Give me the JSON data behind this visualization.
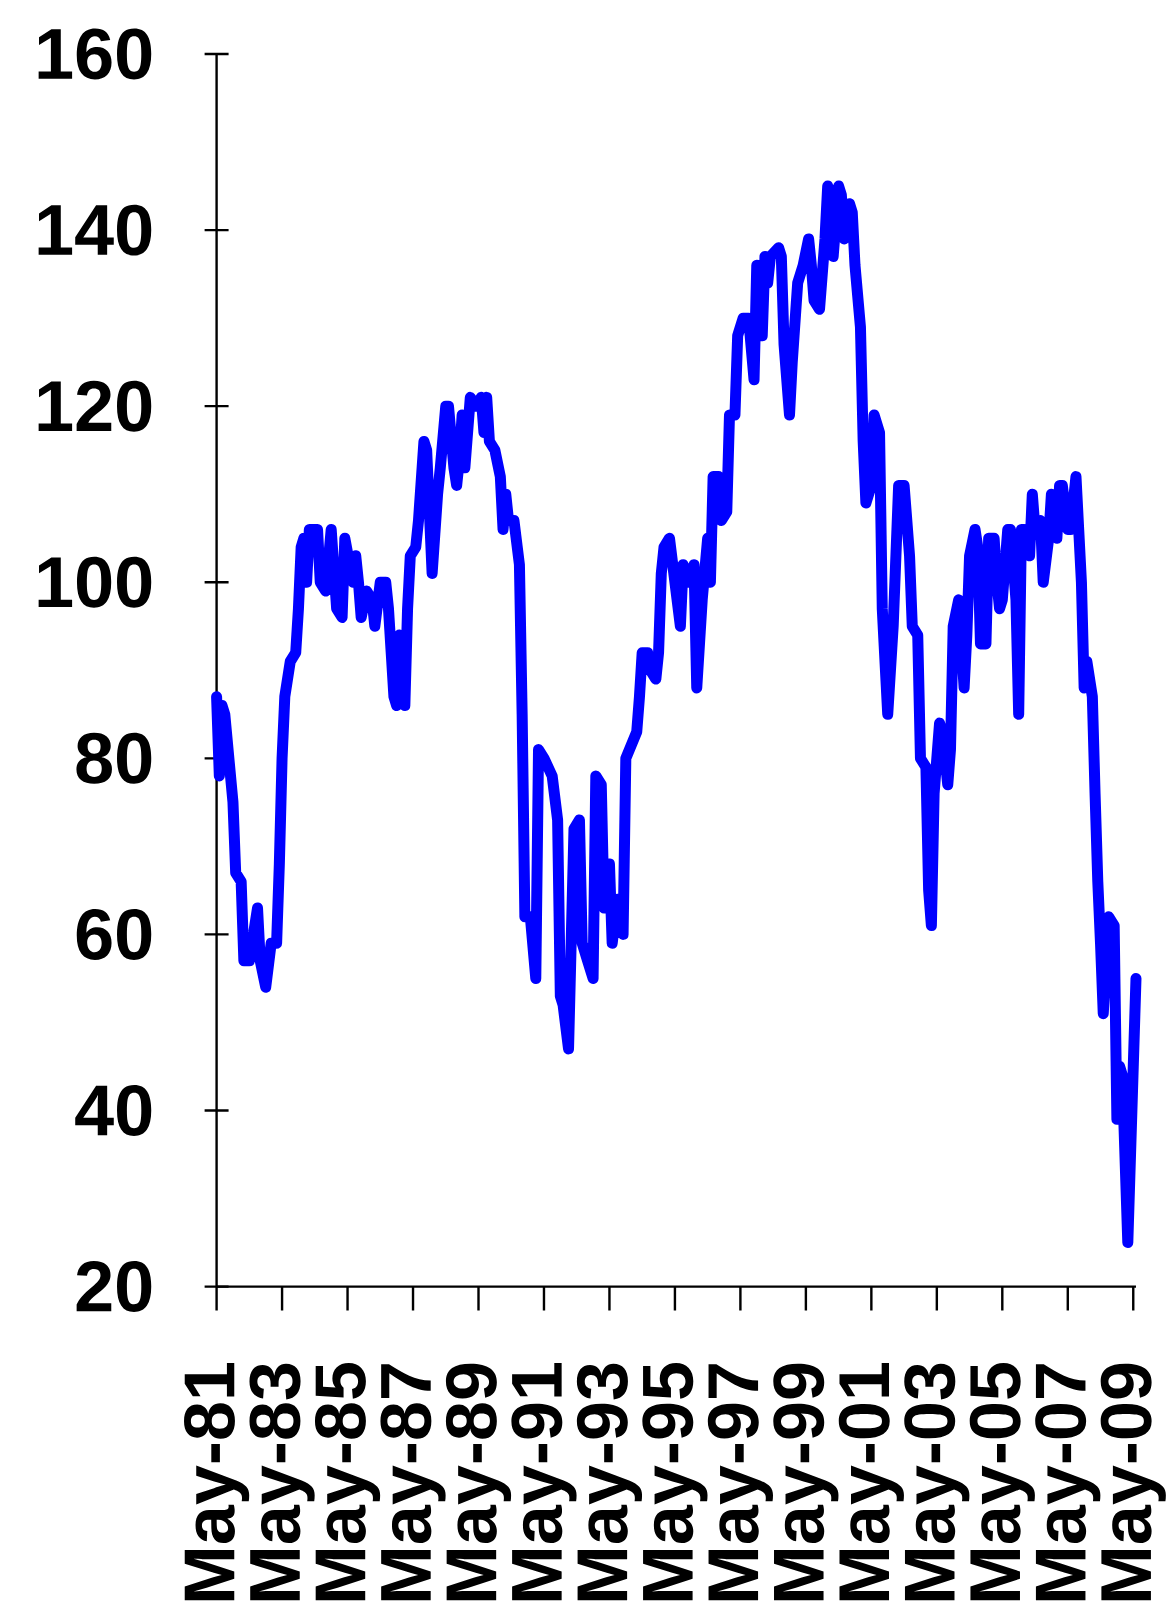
{
  "chart_data": {
    "type": "line",
    "x": [
      "1981-05",
      "1981-06",
      "1981-07",
      "1981-08",
      "1981-11",
      "1981-12",
      "1982-02",
      "1982-03",
      "1982-05",
      "1982-08",
      "1982-09",
      "1982-11",
      "1983-01",
      "1983-03",
      "1983-04",
      "1983-05",
      "1983-06",
      "1983-08",
      "1983-10",
      "1983-11",
      "1983-12",
      "1984-01",
      "1984-02",
      "1984-03",
      "1984-06",
      "1984-07",
      "1984-09",
      "1984-11",
      "1985-01",
      "1985-03",
      "1985-04",
      "1985-07",
      "1985-08",
      "1985-09",
      "1985-10",
      "1985-12",
      "1986-02",
      "1986-03",
      "1986-05",
      "1986-07",
      "1986-08",
      "1986-09",
      "1986-10",
      "1986-11",
      "1986-12",
      "1987-02",
      "1987-03",
      "1987-04",
      "1987-06",
      "1987-07",
      "1987-09",
      "1987-10",
      "1987-12",
      "1988-02",
      "1988-03",
      "1988-05",
      "1988-06",
      "1988-08",
      "1988-09",
      "1988-10",
      "1988-11",
      "1988-12",
      "1989-02",
      "1989-04",
      "1989-06",
      "1989-07",
      "1989-08",
      "1989-09",
      "1989-11",
      "1990-01",
      "1990-02",
      "1990-03",
      "1990-04",
      "1990-06",
      "1990-08",
      "1990-09",
      "1990-10",
      "1990-12",
      "1991-02",
      "1991-03",
      "1991-05",
      "1991-08",
      "1991-10",
      "1991-11",
      "1991-12",
      "1992-02",
      "1992-04",
      "1992-06",
      "1992-07",
      "1992-09",
      "1992-11",
      "1992-12",
      "1993-02",
      "1993-03",
      "1993-05",
      "1993-06",
      "1993-08",
      "1993-10",
      "1993-11",
      "1994-03",
      "1994-04",
      "1994-05",
      "1994-07",
      "1994-08",
      "1994-10",
      "1994-11",
      "1994-12",
      "1995-01",
      "1995-03",
      "1995-05",
      "1995-07",
      "1995-08",
      "1995-10",
      "1995-12",
      "1996-01",
      "1996-03",
      "1996-05",
      "1996-06",
      "1996-07",
      "1996-09",
      "1996-10",
      "1996-12",
      "1997-01",
      "1997-03",
      "1997-04",
      "1997-06",
      "1997-08",
      "1997-10",
      "1997-11",
      "1998-01",
      "1998-02",
      "1998-03",
      "1998-04",
      "1998-07",
      "1998-08",
      "1998-09",
      "1998-11",
      "1998-12",
      "1999-02",
      "1999-04",
      "1999-06",
      "1999-07",
      "1999-08",
      "1999-10",
      "1999-12",
      "2000-01",
      "2000-02",
      "2000-03",
      "2000-05",
      "2000-06",
      "2000-07",
      "2000-09",
      "2000-10",
      "2000-11",
      "2001-01",
      "2001-02",
      "2001-03",
      "2001-05",
      "2001-06",
      "2001-08",
      "2001-09",
      "2001-11",
      "2002-01",
      "2002-03",
      "2002-05",
      "2002-07",
      "2002-08",
      "2002-10",
      "2002-11",
      "2003-01",
      "2003-02",
      "2003-03",
      "2003-04",
      "2003-06",
      "2003-07",
      "2003-09",
      "2003-10",
      "2003-11",
      "2004-01",
      "2004-03",
      "2004-04",
      "2004-05",
      "2004-07",
      "2004-08",
      "2004-09",
      "2004-11",
      "2004-12",
      "2005-02",
      "2005-03",
      "2005-04",
      "2005-05",
      "2005-07",
      "2005-08",
      "2005-10",
      "2005-11",
      "2005-12",
      "2006-01",
      "2006-03",
      "2006-04",
      "2006-05",
      "2006-07",
      "2006-08",
      "2006-10",
      "2006-11",
      "2007-01",
      "2007-02",
      "2007-03",
      "2007-05",
      "2007-06",
      "2007-08",
      "2007-09",
      "2007-10",
      "2007-11",
      "2007-12",
      "2008-02",
      "2008-03",
      "2008-04",
      "2008-05",
      "2008-06",
      "2008-08",
      "2008-10",
      "2008-11",
      "2008-12",
      "2009-01",
      "2009-03",
      "2009-06"
    ],
    "values": [
      87,
      78,
      86,
      85,
      75,
      67,
      66,
      57,
      57,
      63,
      57,
      54,
      59,
      59,
      68,
      80,
      87,
      91,
      92,
      97,
      104,
      105,
      100,
      106,
      106,
      100,
      99,
      106,
      97,
      96,
      105,
      100,
      103,
      100,
      96,
      99,
      98,
      95,
      100,
      100,
      97,
      92,
      87,
      86,
      94,
      86,
      97,
      103,
      104,
      107,
      116,
      115,
      101,
      110,
      113,
      120,
      120,
      113,
      111,
      114,
      119,
      113,
      121,
      120,
      121,
      117,
      121,
      116,
      115,
      112,
      106,
      110,
      107,
      107,
      102,
      85,
      62,
      62,
      55,
      81,
      80,
      78,
      73,
      53,
      52,
      47,
      72,
      73,
      59,
      57,
      55,
      78,
      77,
      63,
      68,
      59,
      64,
      60,
      80,
      83,
      87,
      92,
      92,
      90,
      89,
      92,
      101,
      104,
      105,
      100,
      95,
      102,
      100,
      102,
      88,
      98,
      105,
      100,
      112,
      112,
      107,
      108,
      119,
      119,
      128,
      130,
      130,
      123,
      136,
      128,
      137,
      134,
      137,
      138,
      137,
      127,
      119,
      125,
      134,
      136,
      139,
      136,
      132,
      131,
      139,
      145,
      144,
      137,
      145,
      144,
      139,
      143,
      142,
      136,
      129,
      116,
      109,
      111,
      119,
      117,
      97,
      85,
      95,
      111,
      111,
      103,
      95,
      94,
      80,
      79,
      65,
      61,
      76,
      84,
      83,
      77,
      81,
      95,
      98,
      88,
      94,
      103,
      106,
      104,
      93,
      93,
      105,
      105,
      100,
      97,
      98,
      106,
      106,
      98,
      85,
      106,
      106,
      103,
      110,
      106,
      107,
      100,
      105,
      110,
      105,
      111,
      111,
      106,
      106,
      112,
      106,
      100,
      88,
      91,
      87,
      76,
      66,
      59,
      51,
      62,
      61,
      39,
      45,
      44,
      25,
      55
    ],
    "color": "#0000ff",
    "xlim": [
      "1981-05",
      "2009-06"
    ],
    "xticks": [
      {
        "value": "1981-05",
        "label": "May-81"
      },
      {
        "value": "1983-05",
        "label": "May-83"
      },
      {
        "value": "1985-05",
        "label": "May-85"
      },
      {
        "value": "1987-05",
        "label": "May-87"
      },
      {
        "value": "1989-05",
        "label": "May-89"
      },
      {
        "value": "1991-05",
        "label": "May-91"
      },
      {
        "value": "1993-05",
        "label": "May-93"
      },
      {
        "value": "1995-05",
        "label": "May-95"
      },
      {
        "value": "1997-05",
        "label": "May-97"
      },
      {
        "value": "1999-05",
        "label": "May-99"
      },
      {
        "value": "2001-05",
        "label": "May-01"
      },
      {
        "value": "2003-05",
        "label": "May-03"
      },
      {
        "value": "2005-05",
        "label": "May-05"
      },
      {
        "value": "2007-05",
        "label": "May-07"
      },
      {
        "value": "2009-05",
        "label": "May-09"
      }
    ],
    "ylim": [
      20,
      160
    ],
    "yticks": [
      20,
      40,
      60,
      80,
      100,
      120,
      140,
      160
    ],
    "marker": "none",
    "line_style": "solid"
  }
}
